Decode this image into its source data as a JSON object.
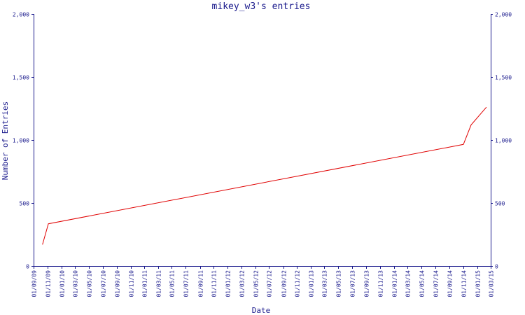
{
  "chart_data": {
    "type": "line",
    "title": "mikey_w3's entries",
    "xlabel": "Date",
    "ylabel": "Number of Entries",
    "ylim": [
      0,
      2000
    ],
    "yticks": [
      0,
      500,
      1000,
      1500,
      2000
    ],
    "ytick_labels": [
      "0",
      "500",
      "1,000",
      "1,500",
      "2,000"
    ],
    "xticks": [
      "2009-09-01",
      "2009-11-01",
      "2010-01-01",
      "2010-03-01",
      "2010-05-01",
      "2010-07-01",
      "2010-09-01",
      "2010-11-01",
      "2011-01-01",
      "2011-03-01",
      "2011-05-01",
      "2011-07-01",
      "2011-09-01",
      "2011-11-01",
      "2012-01-01",
      "2012-03-01",
      "2012-05-01",
      "2012-07-01",
      "2012-09-01",
      "2012-11-01",
      "2013-01-01",
      "2013-03-01",
      "2013-05-01",
      "2013-07-01",
      "2013-09-01",
      "2013-11-01",
      "2014-01-01",
      "2014-03-01",
      "2014-05-01",
      "2014-07-01",
      "2014-09-01",
      "2014-11-01",
      "2015-01-01",
      "2015-03-01"
    ],
    "xtick_labels": [
      "01/09/09",
      "01/11/09",
      "01/01/10",
      "01/03/10",
      "01/05/10",
      "01/07/10",
      "01/09/10",
      "01/11/10",
      "01/01/11",
      "01/03/11",
      "01/05/11",
      "01/07/11",
      "01/09/11",
      "01/11/11",
      "01/01/12",
      "01/03/12",
      "01/05/12",
      "01/07/12",
      "01/09/12",
      "01/11/12",
      "01/01/13",
      "01/03/13",
      "01/05/13",
      "01/07/13",
      "01/09/13",
      "01/11/13",
      "01/01/14",
      "01/03/14",
      "01/05/14",
      "01/07/14",
      "01/09/14",
      "01/11/14",
      "01/01/15",
      "01/03/15"
    ],
    "xlim": [
      "2009-09-01",
      "2015-03-01"
    ],
    "series": [
      {
        "color": "#e00000",
        "points": [
          {
            "x": "2009-10-10",
            "y": 170
          },
          {
            "x": "2009-11-05",
            "y": 335
          },
          {
            "x": "2014-11-01",
            "y": 965
          },
          {
            "x": "2014-12-05",
            "y": 1120
          },
          {
            "x": "2015-02-10",
            "y": 1260
          }
        ]
      }
    ],
    "grid": false,
    "dual_y_axis": true
  }
}
